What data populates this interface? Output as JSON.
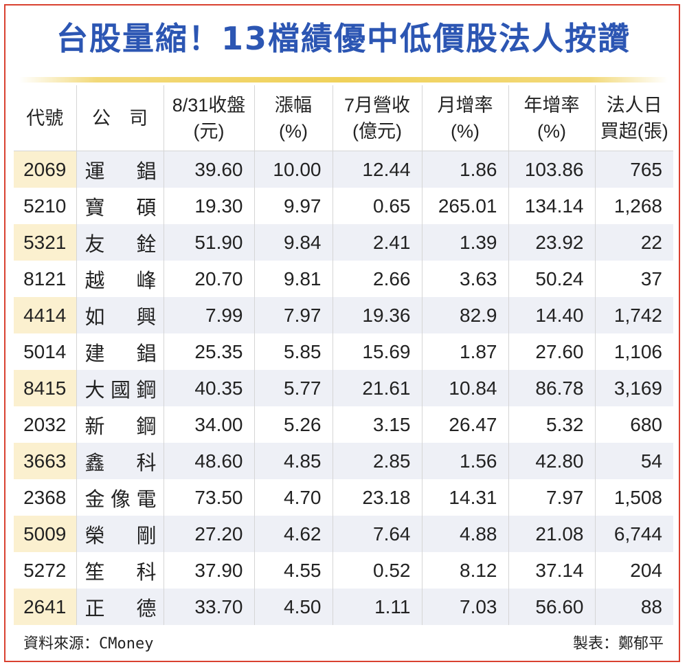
{
  "title": "台股量縮！13檔績優中低價股法人按讚",
  "headers": [
    [
      "代號",
      ""
    ],
    [
      "公　司",
      ""
    ],
    [
      "8/31收盤",
      "(元)"
    ],
    [
      "漲幅",
      "(%)"
    ],
    [
      "7月營收",
      "(億元)"
    ],
    [
      "月增率",
      "(%)"
    ],
    [
      "年增率",
      "(%)"
    ],
    [
      "法人日",
      "買超(張)"
    ]
  ],
  "rows": [
    [
      "2069",
      "運錩",
      "39.60",
      "10.00",
      "12.44",
      "1.86",
      "103.86",
      "765"
    ],
    [
      "5210",
      "寶碩",
      "19.30",
      "9.97",
      "0.65",
      "265.01",
      "134.14",
      "1,268"
    ],
    [
      "5321",
      "友銓",
      "51.90",
      "9.84",
      "2.41",
      "1.39",
      "23.92",
      "22"
    ],
    [
      "8121",
      "越峰",
      "20.70",
      "9.81",
      "2.66",
      "3.63",
      "50.24",
      "37"
    ],
    [
      "4414",
      "如興",
      "7.99",
      "7.97",
      "19.36",
      "82.9",
      "14.40",
      "1,742"
    ],
    [
      "5014",
      "建錩",
      "25.35",
      "5.85",
      "15.69",
      "1.87",
      "27.60",
      "1,106"
    ],
    [
      "8415",
      "大國鋼",
      "40.35",
      "5.77",
      "21.61",
      "10.84",
      "86.78",
      "3,169"
    ],
    [
      "2032",
      "新鋼",
      "34.00",
      "5.26",
      "3.15",
      "26.47",
      "5.32",
      "680"
    ],
    [
      "3663",
      "鑫科",
      "48.60",
      "4.85",
      "2.85",
      "1.56",
      "42.80",
      "54"
    ],
    [
      "2368",
      "金像電",
      "73.50",
      "4.70",
      "23.18",
      "14.31",
      "7.97",
      "1,508"
    ],
    [
      "5009",
      "榮剛",
      "27.20",
      "4.62",
      "7.64",
      "4.88",
      "21.08",
      "6,744"
    ],
    [
      "5272",
      "笙科",
      "37.90",
      "4.55",
      "0.52",
      "8.12",
      "37.14",
      "204"
    ],
    [
      "2641",
      "正德",
      "33.70",
      "4.50",
      "1.11",
      "7.03",
      "56.60",
      "88"
    ]
  ],
  "footer": {
    "source": "資料來源：CMoney",
    "credit": "製表：鄭郁平"
  },
  "colors": {
    "title": "#2c56b3",
    "frame": "#d9402f",
    "code_shade": "#fbf0cf",
    "row_shade": "#eef0f6",
    "rule": "#f0d15a"
  }
}
